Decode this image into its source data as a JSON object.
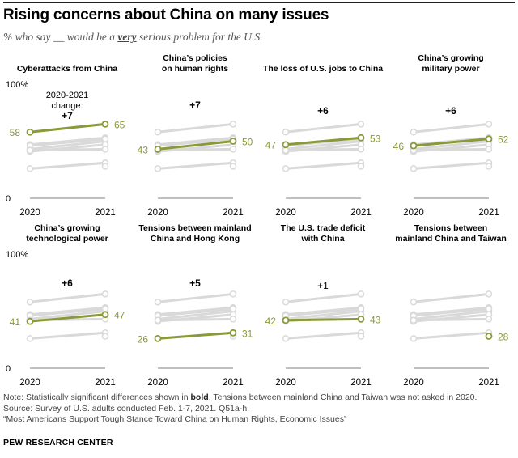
{
  "title": "Rising concerns about China on many issues",
  "subtitle": {
    "before": "% who say __ would be a ",
    "emph": "very",
    "after": " serious problem for the U.S."
  },
  "chart_data": {
    "type": "line",
    "small_multiples": true,
    "x": [
      "2020",
      "2021"
    ],
    "ylim": [
      0,
      100
    ],
    "y_tick_labels": [
      "0",
      "100%"
    ],
    "change_header": "2020-2021",
    "change_header2": "change:",
    "colors": {
      "highlight": "#8a9a3a",
      "other": "#d9d9d9",
      "axis": "#999999"
    },
    "series": [
      {
        "name": "Cyberattacks from China",
        "title_lines": [
          "Cyberattacks from China"
        ],
        "values": [
          58,
          65
        ],
        "change": "+7",
        "significant": true
      },
      {
        "name": "China's policies on human rights",
        "title_lines": [
          "China’s policies",
          "on human rights"
        ],
        "values": [
          43,
          50
        ],
        "change": "+7",
        "significant": true
      },
      {
        "name": "The loss of U.S. jobs to China",
        "title_lines": [
          "The loss of U.S. jobs to China"
        ],
        "values": [
          47,
          53
        ],
        "change": "+6",
        "significant": true
      },
      {
        "name": "China's growing military power",
        "title_lines": [
          "China’s growing",
          "military power"
        ],
        "values": [
          46,
          52
        ],
        "change": "+6",
        "significant": true
      },
      {
        "name": "China's growing technological power",
        "title_lines": [
          "China’s growing",
          "technological power"
        ],
        "values": [
          41,
          47
        ],
        "change": "+6",
        "significant": true
      },
      {
        "name": "Tensions between mainland China and Hong Kong",
        "title_lines": [
          "Tensions between mainland",
          "China and Hong Kong"
        ],
        "values": [
          26,
          31
        ],
        "change": "+5",
        "significant": true
      },
      {
        "name": "The U.S. trade deficit with China",
        "title_lines": [
          "The U.S. trade deficit",
          "with China"
        ],
        "values": [
          42,
          43
        ],
        "change": "+1",
        "significant": false
      },
      {
        "name": "Tensions between mainland China and Taiwan",
        "title_lines": [
          "Tensions between",
          "mainland China and Taiwan"
        ],
        "values": [
          null,
          28
        ],
        "change": "",
        "significant": false
      }
    ]
  },
  "notes": {
    "line1_before": "Note: Statistically significant differences shown in ",
    "line1_bold": "bold",
    "line1_after": ". Tensions between mainland China and Taiwan was not asked in 2020.",
    "line2": "Source: Survey of U.S. adults conducted Feb. 1-7, 2021. Q51a-h.",
    "line3": "“Most Americans Support Tough Stance Toward China on Human Rights, Economic Issues”"
  },
  "org": "PEW RESEARCH CENTER"
}
